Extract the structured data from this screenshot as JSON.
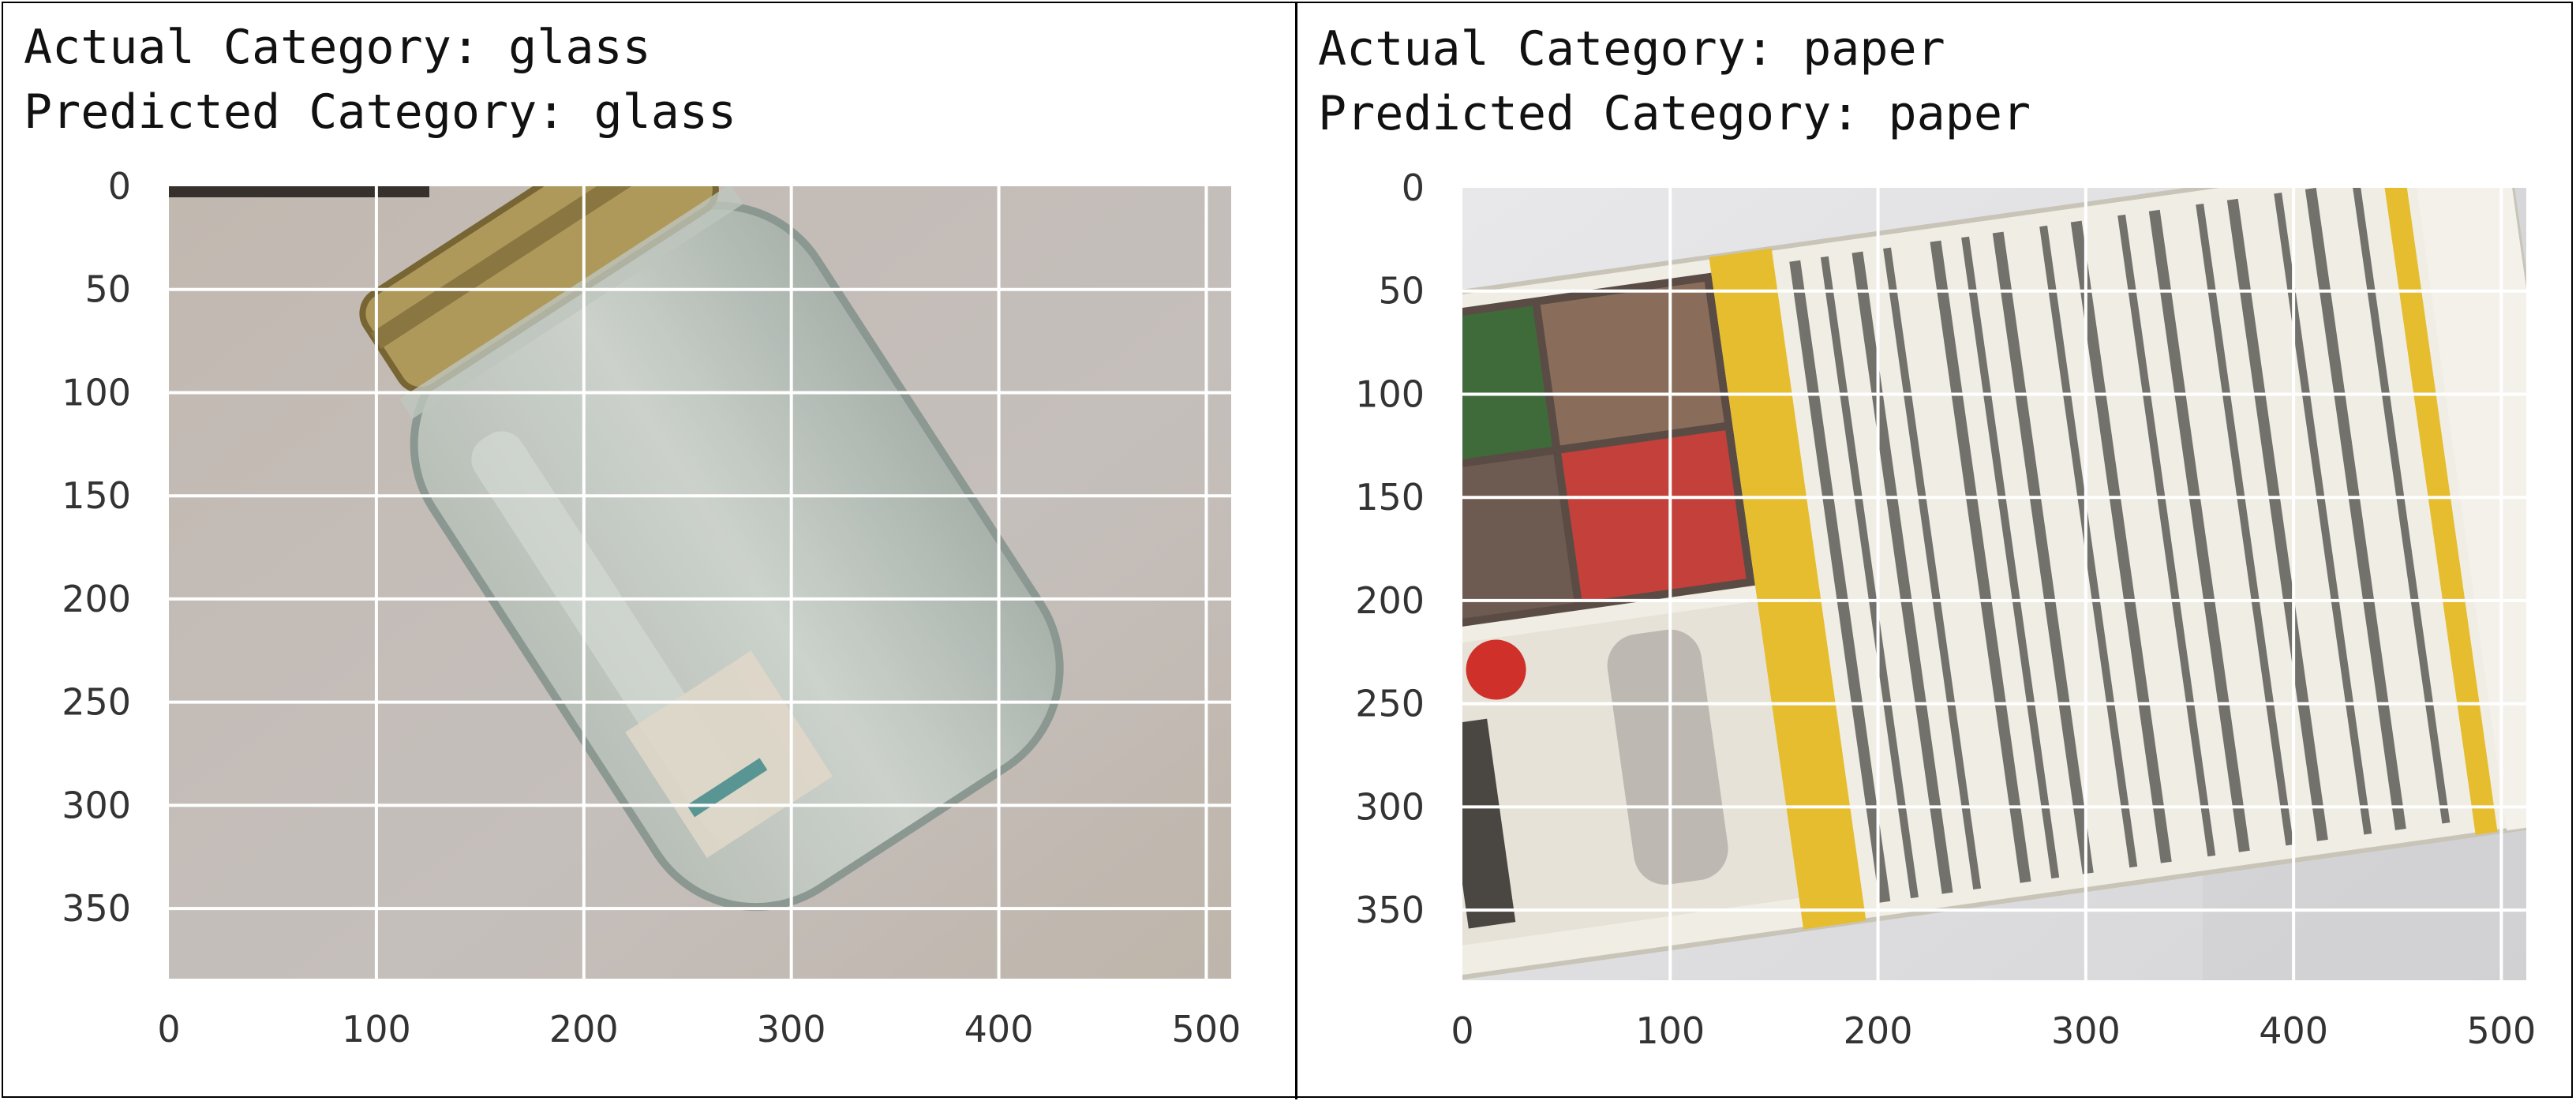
{
  "panels": [
    {
      "actual_label": "Actual Category: glass",
      "predicted_label": "Predicted Category: glass",
      "subject": "glass-jar"
    },
    {
      "actual_label": "Actual Category: paper",
      "predicted_label": "Predicted Category: paper",
      "subject": "folded-flyer"
    }
  ],
  "axes": {
    "x_ticks": [
      "0",
      "100",
      "200",
      "300",
      "400",
      "500"
    ],
    "y_ticks": [
      "0",
      "50",
      "100",
      "150",
      "200",
      "250",
      "300",
      "350"
    ],
    "x_range": [
      0,
      512
    ],
    "y_range": [
      0,
      384
    ],
    "grid": true,
    "grid_color": "#ffffff"
  },
  "colors": {
    "left_background": "#c8c0ba",
    "right_background": "#e4e4e6",
    "jar_lid": "#b8a060",
    "flyer_band": "#e8c030"
  }
}
